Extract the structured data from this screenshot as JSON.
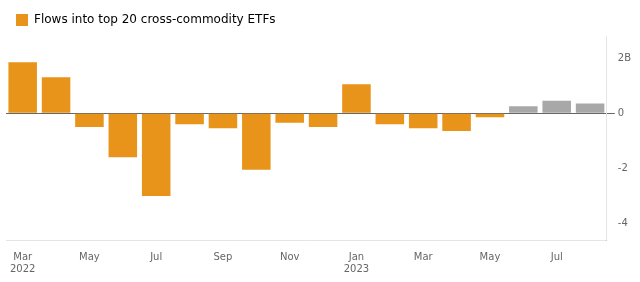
{
  "chart_data": {
    "type": "bar",
    "categories": [
      "Mar\n2022",
      null,
      "May",
      null,
      "Jul",
      null,
      "Sep",
      null,
      "Nov",
      null,
      "Jan\n2023",
      null,
      "Mar",
      null,
      "May",
      null,
      "Jul",
      null
    ],
    "series": [
      {
        "name": "Flows into top 20 cross-commodity ETFs",
        "values": [
          1.85,
          1.3,
          -0.5,
          -1.6,
          -3.0,
          -0.4,
          -0.55,
          -2.05,
          -0.35,
          -0.5,
          1.05,
          -0.4,
          -0.55,
          -0.65,
          -0.15,
          0.25,
          0.45,
          0.35
        ],
        "colors": [
          "#E8941A",
          "#E8941A",
          "#E8941A",
          "#E8941A",
          "#E8941A",
          "#E8941A",
          "#E8941A",
          "#E8941A",
          "#E8941A",
          "#E8941A",
          "#E8941A",
          "#E8941A",
          "#E8941A",
          "#E8941A",
          "#E8941A",
          "#A8A8A8",
          "#A8A8A8",
          "#A8A8A8"
        ]
      }
    ],
    "ylim": [
      -4.6,
      2.8
    ],
    "yticks": [
      -4,
      -2,
      0,
      {
        "value": 2,
        "label": "2B"
      }
    ],
    "grid": false,
    "legend": "upper left"
  }
}
